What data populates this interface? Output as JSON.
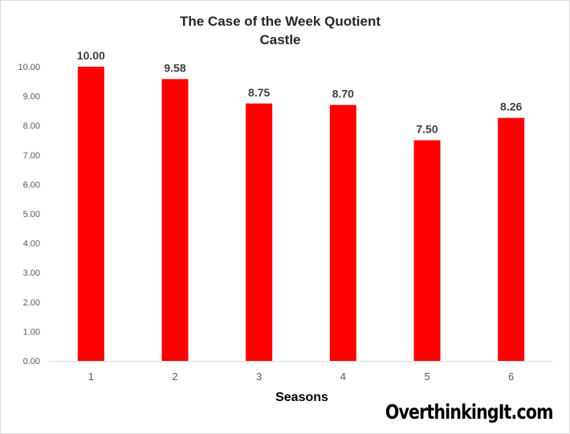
{
  "chart_data": {
    "type": "bar",
    "title": "The Case of the Week Quotient",
    "subtitle": "Castle",
    "xlabel": "Seasons",
    "ylabel": "",
    "categories": [
      "1",
      "2",
      "3",
      "4",
      "5",
      "6"
    ],
    "values": [
      10.0,
      9.58,
      8.75,
      8.7,
      7.5,
      8.26
    ],
    "data_labels": [
      "10.00",
      "9.58",
      "8.75",
      "8.70",
      "7.50",
      "8.26"
    ],
    "ylim": [
      0,
      10
    ],
    "y_ticks": [
      "0.00",
      "1.00",
      "2.00",
      "3.00",
      "4.00",
      "5.00",
      "6.00",
      "7.00",
      "8.00",
      "9.00",
      "10.00"
    ],
    "grid": false,
    "legend": "none",
    "bar_color": "#ff0000"
  },
  "watermark": "OverthinkingIt.com"
}
